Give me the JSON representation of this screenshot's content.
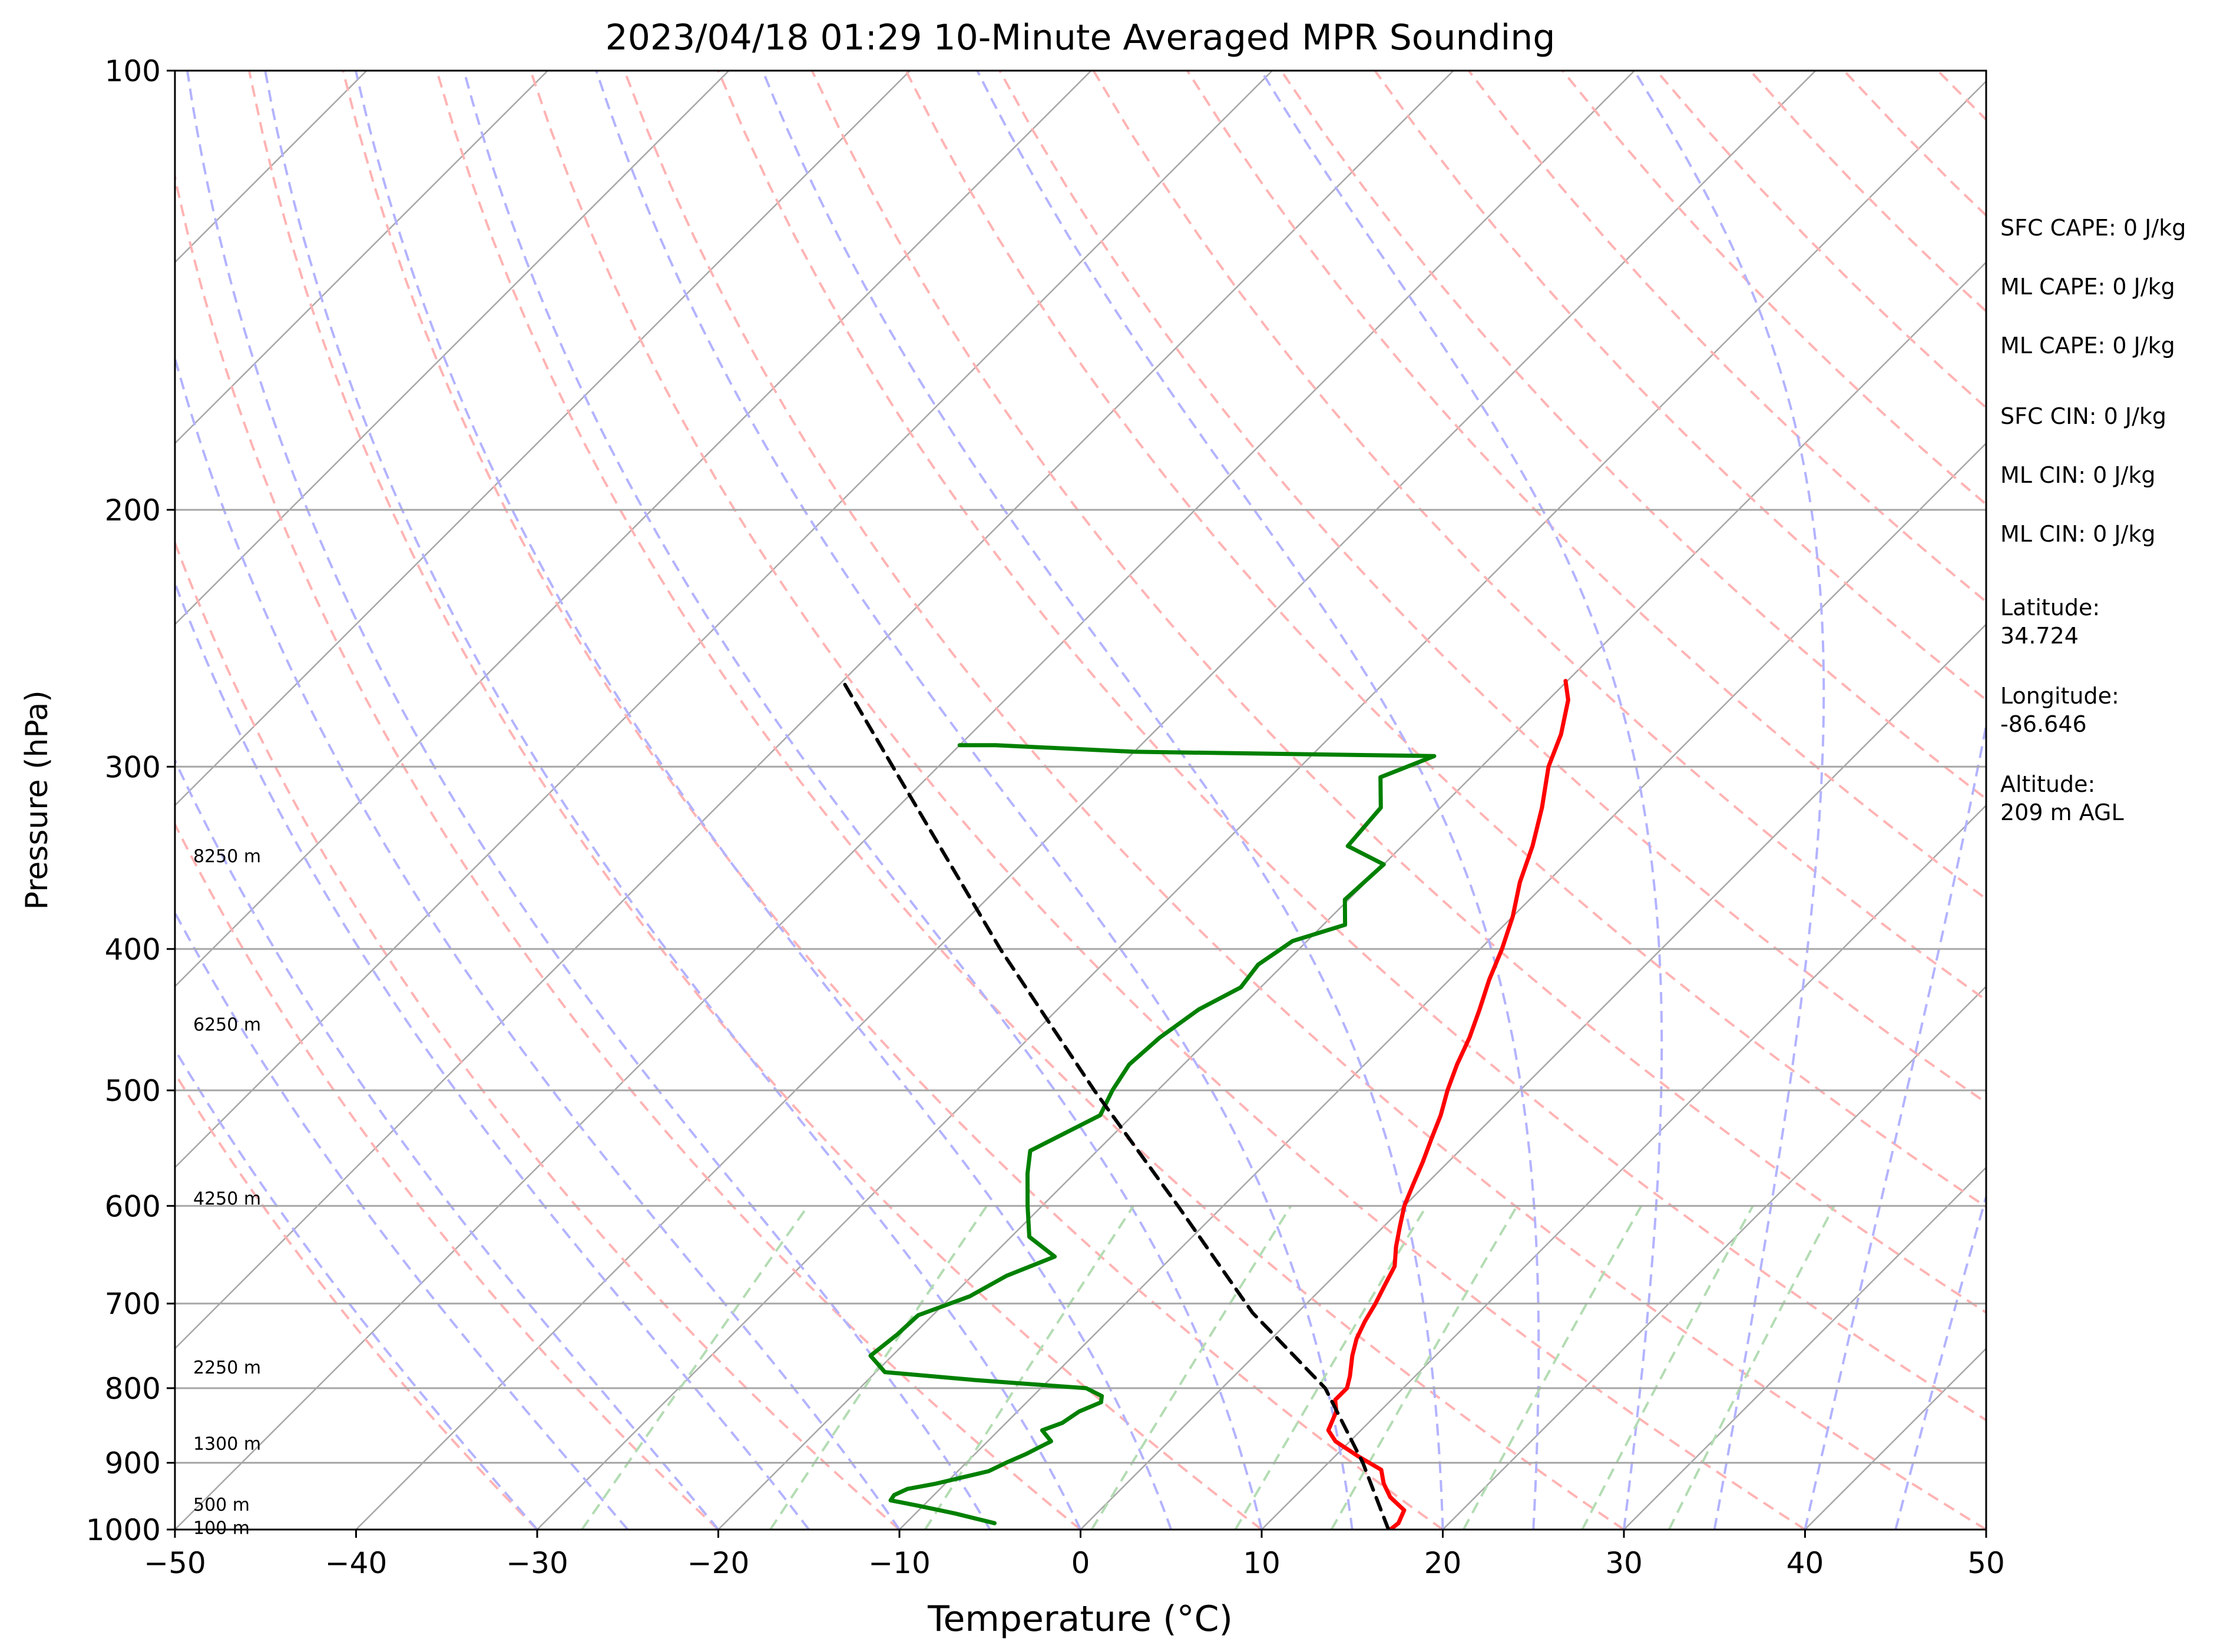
{
  "chart_data": {
    "type": "line",
    "title": "2023/04/18 01:29 10-Minute Averaged MPR Sounding",
    "xlabel": "Temperature (°C)",
    "ylabel": "Pressure (hPa)",
    "xlim": [
      -50,
      50
    ],
    "ylim": [
      1000,
      100
    ],
    "y_scale": "log",
    "skew": true,
    "x_ticks": [
      "−50",
      "−40",
      "−30",
      "−20",
      "−10",
      "0",
      "10",
      "20",
      "30",
      "40",
      "50"
    ],
    "y_ticks": [
      "100",
      "200",
      "300",
      "400",
      "500",
      "600",
      "700",
      "800",
      "900",
      "1000"
    ],
    "grid": true,
    "height_labels": [
      {
        "p": 345,
        "text": "8250 m"
      },
      {
        "p": 450,
        "text": "6250 m"
      },
      {
        "p": 592,
        "text": "4250 m"
      },
      {
        "p": 773,
        "text": "2250 m"
      },
      {
        "p": 872,
        "text": "1300 m"
      },
      {
        "p": 960,
        "text": "500 m"
      },
      {
        "p": 996,
        "text": "100 m"
      }
    ],
    "series": [
      {
        "role": "temperature",
        "color": "#ff0000",
        "style": "solid",
        "points": [
          [
            1000,
            17.1
          ],
          [
            990,
            17.2
          ],
          [
            970,
            16.8
          ],
          [
            950,
            15.3
          ],
          [
            930,
            14.2
          ],
          [
            910,
            13.3
          ],
          [
            890,
            11.2
          ],
          [
            870,
            9.2
          ],
          [
            855,
            8.2
          ],
          [
            830,
            7.6
          ],
          [
            815,
            6.9
          ],
          [
            800,
            6.9
          ],
          [
            785,
            6.4
          ],
          [
            760,
            5.4
          ],
          [
            740,
            4.7
          ],
          [
            720,
            4.2
          ],
          [
            700,
            3.8
          ],
          [
            680,
            3.3
          ],
          [
            660,
            2.8
          ],
          [
            640,
            1.8
          ],
          [
            620,
            0.9
          ],
          [
            600,
            0.0
          ],
          [
            580,
            -0.7
          ],
          [
            560,
            -1.4
          ],
          [
            540,
            -2.2
          ],
          [
            520,
            -3.0
          ],
          [
            500,
            -4.0
          ],
          [
            480,
            -4.9
          ],
          [
            460,
            -5.7
          ],
          [
            440,
            -6.7
          ],
          [
            420,
            -7.8
          ],
          [
            400,
            -8.8
          ],
          [
            380,
            -10.0
          ],
          [
            360,
            -11.5
          ],
          [
            340,
            -12.8
          ],
          [
            320,
            -14.4
          ],
          [
            300,
            -16.3
          ],
          [
            285,
            -17.4
          ],
          [
            270,
            -18.9
          ],
          [
            262,
            -20.1
          ]
        ]
      },
      {
        "role": "dewpoint",
        "color": "#008000",
        "style": "solid",
        "points": [
          [
            990,
            -5.1
          ],
          [
            975,
            -7.8
          ],
          [
            963,
            -10.3
          ],
          [
            955,
            -12.1
          ],
          [
            947,
            -12.2
          ],
          [
            938,
            -11.8
          ],
          [
            930,
            -10.5
          ],
          [
            912,
            -8.3
          ],
          [
            900,
            -7.8
          ],
          [
            888,
            -7.2
          ],
          [
            870,
            -6.5
          ],
          [
            855,
            -7.6
          ],
          [
            845,
            -6.9
          ],
          [
            830,
            -6.6
          ],
          [
            818,
            -5.9
          ],
          [
            810,
            -6.2
          ],
          [
            800,
            -7.5
          ],
          [
            790,
            -14.0
          ],
          [
            780,
            -19.5
          ],
          [
            760,
            -21.2
          ],
          [
            735,
            -20.9
          ],
          [
            713,
            -20.8
          ],
          [
            692,
            -19.0
          ],
          [
            670,
            -18.1
          ],
          [
            650,
            -16.5
          ],
          [
            630,
            -19.0
          ],
          [
            600,
            -20.8
          ],
          [
            570,
            -22.6
          ],
          [
            550,
            -23.7
          ],
          [
            520,
            -21.8
          ],
          [
            500,
            -22.5
          ],
          [
            480,
            -23.0
          ],
          [
            460,
            -22.8
          ],
          [
            440,
            -22.2
          ],
          [
            425,
            -21.1
          ],
          [
            410,
            -21.4
          ],
          [
            395,
            -20.8
          ],
          [
            385,
            -18.8
          ],
          [
            370,
            -20.2
          ],
          [
            350,
            -20.0
          ],
          [
            340,
            -23.0
          ],
          [
            320,
            -23.3
          ],
          [
            305,
            -25.0
          ],
          [
            295,
            -23.2
          ],
          [
            293,
            -40.0
          ],
          [
            290,
            -48.0
          ],
          [
            290,
            -50.0
          ]
        ]
      },
      {
        "role": "parcel",
        "color": "#000000",
        "style": "dashed",
        "points": [
          [
            1000,
            17.0
          ],
          [
            900,
            11.9
          ],
          [
            800,
            5.7
          ],
          [
            710,
            -2.5
          ],
          [
            600,
            -12.5
          ],
          [
            500,
            -23.5
          ],
          [
            400,
            -36.5
          ],
          [
            300,
            -52.5
          ],
          [
            262,
            -60.0
          ]
        ]
      }
    ],
    "reference_lines": {
      "isotherm_color": "#a6a6a6",
      "dry_adiabat_color": "#ffb3b3",
      "moist_adiabat_color": "#b3b3ff",
      "mixing_ratio_color": "#b3dcb3"
    }
  },
  "stats": [
    {
      "label": "SFC CAPE: 0 J/kg"
    },
    {
      "label": "ML CAPE: 0 J/kg"
    },
    {
      "label": "ML CAPE: 0 J/kg"
    },
    {
      "label": "SFC CIN: 0 J/kg"
    },
    {
      "label": "ML CIN: 0 J/kg"
    },
    {
      "label": "ML CIN: 0 J/kg"
    },
    {
      "label": "Latitude:",
      "value": "34.724"
    },
    {
      "label": "Longitude:",
      "value": "-86.646"
    },
    {
      "label": "Altitude:",
      "value": "209 m AGL"
    }
  ]
}
